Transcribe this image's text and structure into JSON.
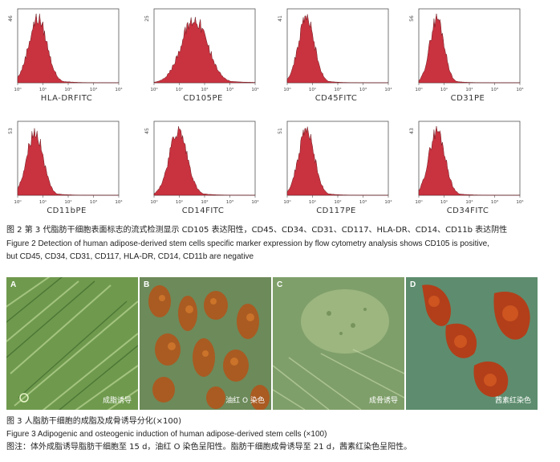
{
  "histograms": [
    {
      "marker": "HLA-DRFITC",
      "ymax": "46",
      "peak": 0.2,
      "width": 0.09
    },
    {
      "marker": "CD105PE",
      "ymax": "25",
      "peak": 0.4,
      "width": 0.13
    },
    {
      "marker": "CD45FITC",
      "ymax": "41",
      "peak": 0.19,
      "width": 0.08
    },
    {
      "marker": "CD31PE",
      "ymax": "56",
      "peak": 0.18,
      "width": 0.07
    },
    {
      "marker": "CD11bPE",
      "ymax": "53",
      "peak": 0.17,
      "width": 0.08
    },
    {
      "marker": "CD14FITC",
      "ymax": "45",
      "peak": 0.24,
      "width": 0.09
    },
    {
      "marker": "CD117PE",
      "ymax": "51",
      "peak": 0.19,
      "width": 0.08
    },
    {
      "marker": "CD34FITC",
      "ymax": "43",
      "peak": 0.18,
      "width": 0.08
    }
  ],
  "axis_ticks": [
    "10⁰",
    "10¹",
    "10²",
    "10³",
    "10⁴"
  ],
  "fig2": {
    "zh": "图 2   第 3 代脂肪干细胞表面标志的流式检测显示 CD105 表达阳性，CD45、CD34、CD31、CD117、HLA-DR、CD14、CD11b 表达阴性",
    "en1": "Figure 2    Detection of human adipose-derived stem cells specific marker expression by flow cytometry analysis shows CD105 is positive,",
    "en2": "but CD45, CD34, CD31, CD117, HLA-DR, CD14, CD11b are negative"
  },
  "panels": [
    {
      "letter": "A",
      "label": "成脂诱导"
    },
    {
      "letter": "B",
      "label": "油红 O 染色"
    },
    {
      "letter": "C",
      "label": "成骨诱导"
    },
    {
      "letter": "D",
      "label": "茜素红染色"
    }
  ],
  "fig3": {
    "zh": "图 3   人脂肪干细胞的成脂及成骨诱导分化(×100)",
    "en": "Figure 3    Adipogenic and osteogenic induction of human adipose-derived stem cells (×100)",
    "note": "图注：体外成脂诱导脂肪干细胞至 15 d，油红 O 染色呈阳性。脂肪干细胞成骨诱导至 21 d，茜素红染色呈阳性。"
  },
  "colors": {
    "histogram_fill": "#c9323f",
    "panel_green": "#7a9a55",
    "stain_red": "#b8421d"
  }
}
